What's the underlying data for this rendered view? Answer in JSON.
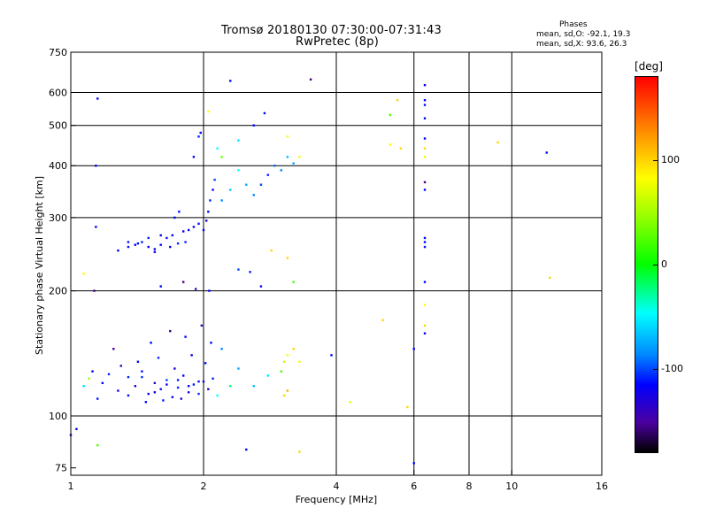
{
  "header": {
    "title": "Tromsø 20180130 07:30:00-07:31:43",
    "subtitle": "RwPretec (8p)",
    "stats_heading": "Phases",
    "stats_o": "mean, sd,O: -92.1, 19.3",
    "stats_x": "mean, sd,X:  93.6, 26.3"
  },
  "colorbar": {
    "unit": "[deg]",
    "ticks": [
      "100",
      "0",
      "-100"
    ],
    "tick_values": [
      100,
      0,
      -100
    ],
    "range": [
      -180,
      180
    ],
    "colors_top_to_bottom": [
      "#ff0000",
      "#ff8800",
      "#ffff00",
      "#00ff00",
      "#00ffff",
      "#0000ff",
      "#000000"
    ]
  },
  "chart_data": {
    "type": "scatter",
    "title": "Tromsø 20180130 07:30:00-07:31:43",
    "subtitle": "RwPretec (8p)",
    "xlabel": "Frequency [MHz]",
    "ylabel": "Stationary phase Virtual Height [km]",
    "x_scale": "log",
    "y_scale": "log",
    "xlim": [
      1,
      16
    ],
    "ylim": [
      72,
      750
    ],
    "x_ticks": [
      1,
      2,
      4,
      6,
      8,
      10,
      16
    ],
    "x_tick_labels": [
      "1",
      "2",
      "4",
      "6",
      "8",
      "10",
      "16"
    ],
    "y_ticks": [
      75,
      100,
      200,
      300,
      400,
      500,
      600,
      750
    ],
    "y_tick_labels": [
      "75",
      "100",
      "200",
      "300",
      "400",
      "500",
      "600",
      "750"
    ],
    "x_gridlines": [
      2,
      4,
      6,
      8,
      10
    ],
    "y_gridlines": [
      100,
      200,
      300,
      400,
      500,
      600
    ],
    "grid": true,
    "color_scale": "phase [deg], -180 (black) to 180 (red)",
    "series": [
      {
        "points": [
          [
            1.18,
            120,
            -100
          ],
          [
            1.22,
            126,
            -90
          ],
          [
            1.28,
            115,
            -105
          ],
          [
            1.35,
            112,
            -95
          ],
          [
            1.4,
            118,
            -110
          ],
          [
            1.45,
            124,
            -85
          ],
          [
            1.5,
            113,
            -100
          ],
          [
            1.55,
            120,
            -120
          ],
          [
            1.6,
            116,
            -95
          ],
          [
            1.65,
            122,
            -80
          ],
          [
            1.7,
            111,
            -105
          ],
          [
            1.75,
            117,
            -90
          ],
          [
            1.8,
            125,
            -100
          ],
          [
            1.85,
            114,
            -115
          ],
          [
            1.9,
            119,
            -95
          ],
          [
            1.95,
            113,
            -85
          ],
          [
            2.0,
            121,
            -100
          ],
          [
            2.05,
            116,
            -110
          ],
          [
            2.1,
            123,
            -90
          ],
          [
            1.12,
            128,
            -100
          ],
          [
            1.15,
            110,
            -95
          ],
          [
            1.3,
            132,
            -120
          ],
          [
            1.42,
            135,
            -100
          ],
          [
            1.58,
            138,
            -90
          ],
          [
            1.72,
            130,
            -105
          ],
          [
            1.88,
            140,
            -100
          ],
          [
            2.02,
            134,
            -95
          ],
          [
            1.48,
            108,
            -100
          ],
          [
            1.62,
            109,
            -90
          ],
          [
            1.78,
            110,
            -110
          ],
          [
            1.25,
            145,
            -130
          ],
          [
            1.52,
            150,
            -100
          ],
          [
            1.68,
            160,
            -140
          ],
          [
            1.82,
            155,
            -100
          ],
          [
            1.98,
            165,
            -120
          ],
          [
            2.08,
            150,
            -100
          ],
          [
            2.2,
            145,
            -60
          ],
          [
            2.4,
            130,
            -50
          ],
          [
            2.6,
            118,
            -40
          ],
          [
            2.8,
            125,
            -30
          ],
          [
            3.0,
            128,
            20
          ],
          [
            3.05,
            135,
            60
          ],
          [
            3.1,
            140,
            100
          ],
          [
            3.2,
            145,
            110
          ],
          [
            3.3,
            135,
            90
          ],
          [
            3.05,
            112,
            110
          ],
          [
            3.1,
            115,
            120
          ],
          [
            2.15,
            112,
            -20
          ],
          [
            2.3,
            118,
            -10
          ],
          [
            1.35,
            124,
            -90
          ],
          [
            1.45,
            128,
            -95
          ],
          [
            1.55,
            114,
            -100
          ],
          [
            1.65,
            119,
            -100
          ],
          [
            1.75,
            122,
            -90
          ],
          [
            1.85,
            118,
            -100
          ],
          [
            1.95,
            121,
            -110
          ],
          [
            1.07,
            118,
            -30
          ],
          [
            1.1,
            123,
            40
          ],
          [
            1.28,
            250,
            -100
          ],
          [
            1.35,
            255,
            -95
          ],
          [
            1.4,
            258,
            -100
          ],
          [
            1.45,
            262,
            -90
          ],
          [
            1.5,
            255,
            -100
          ],
          [
            1.55,
            252,
            -105
          ],
          [
            1.6,
            258,
            -100
          ],
          [
            1.65,
            268,
            -95
          ],
          [
            1.7,
            272,
            -100
          ],
          [
            1.75,
            260,
            -90
          ],
          [
            1.8,
            278,
            -100
          ],
          [
            1.85,
            280,
            -100
          ],
          [
            1.9,
            285,
            -100
          ],
          [
            1.95,
            290,
            -95
          ],
          [
            2.0,
            280,
            -100
          ],
          [
            2.03,
            295,
            -110
          ],
          [
            2.05,
            310,
            -100
          ],
          [
            2.07,
            330,
            -90
          ],
          [
            2.1,
            350,
            -100
          ],
          [
            2.12,
            370,
            -80
          ],
          [
            1.9,
            420,
            -100
          ],
          [
            1.95,
            470,
            -90
          ],
          [
            1.97,
            480,
            -100
          ],
          [
            1.72,
            300,
            -100
          ],
          [
            1.76,
            310,
            -95
          ],
          [
            1.6,
            272,
            -100
          ],
          [
            1.5,
            268,
            -90
          ],
          [
            1.42,
            260,
            -100
          ],
          [
            1.35,
            262,
            -95
          ],
          [
            1.55,
            248,
            -100
          ],
          [
            1.68,
            255,
            -100
          ],
          [
            1.82,
            262,
            -90
          ],
          [
            2.2,
            330,
            -60
          ],
          [
            2.3,
            350,
            -40
          ],
          [
            2.4,
            390,
            -20
          ],
          [
            2.5,
            360,
            -50
          ],
          [
            2.6,
            340,
            -60
          ],
          [
            2.7,
            360,
            -80
          ],
          [
            2.8,
            380,
            -90
          ],
          [
            2.9,
            400,
            -70
          ],
          [
            3.0,
            390,
            -60
          ],
          [
            3.1,
            420,
            -40
          ],
          [
            3.2,
            405,
            -50
          ],
          [
            3.3,
            420,
            90
          ],
          [
            2.2,
            420,
            30
          ],
          [
            2.15,
            440,
            -20
          ],
          [
            2.4,
            460,
            -30
          ],
          [
            2.6,
            500,
            -100
          ],
          [
            3.1,
            470,
            100
          ],
          [
            2.4,
            225,
            -80
          ],
          [
            2.55,
            222,
            -90
          ],
          [
            2.7,
            205,
            -100
          ],
          [
            2.85,
            250,
            110
          ],
          [
            3.1,
            240,
            110
          ],
          [
            3.2,
            210,
            20
          ],
          [
            1.8,
            210,
            -140
          ],
          [
            1.92,
            202,
            -120
          ],
          [
            2.06,
            200,
            -100
          ],
          [
            1.15,
            580,
            -100
          ],
          [
            2.3,
            640,
            -100
          ],
          [
            3.5,
            645,
            -140
          ],
          [
            2.05,
            540,
            100
          ],
          [
            2.75,
            535,
            -100
          ],
          [
            5.5,
            575,
            110
          ],
          [
            5.3,
            530,
            20
          ],
          [
            6.35,
            625,
            -100
          ],
          [
            6.35,
            575,
            -100
          ],
          [
            6.35,
            560,
            -100
          ],
          [
            6.35,
            520,
            -100
          ],
          [
            6.35,
            465,
            -100
          ],
          [
            6.35,
            440,
            110
          ],
          [
            6.35,
            420,
            90
          ],
          [
            6.35,
            365,
            -140
          ],
          [
            6.35,
            350,
            -100
          ],
          [
            6.35,
            268,
            -100
          ],
          [
            6.35,
            262,
            -100
          ],
          [
            6.35,
            255,
            -95
          ],
          [
            6.35,
            210,
            -100
          ],
          [
            6.35,
            185,
            100
          ],
          [
            6.35,
            165,
            110
          ],
          [
            6.35,
            158,
            -100
          ],
          [
            5.3,
            450,
            100
          ],
          [
            5.6,
            440,
            110
          ],
          [
            9.3,
            455,
            110
          ],
          [
            12.0,
            430,
            -100
          ],
          [
            6.0,
            145,
            -100
          ],
          [
            5.8,
            105,
            110
          ],
          [
            5.1,
            170,
            110
          ],
          [
            4.3,
            108,
            80
          ],
          [
            3.9,
            140,
            -100
          ],
          [
            6.0,
            77,
            -100
          ],
          [
            3.3,
            82,
            110
          ],
          [
            2.5,
            83,
            -100
          ],
          [
            1.15,
            85,
            20
          ],
          [
            1.03,
            93,
            -100
          ],
          [
            1.0,
            90,
            -100
          ],
          [
            1.07,
            220,
            100
          ],
          [
            1.14,
            285,
            -100
          ],
          [
            1.14,
            400,
            -100
          ],
          [
            12.2,
            215,
            110
          ],
          [
            1.13,
            200,
            -140
          ],
          [
            1.6,
            205,
            -100
          ]
        ]
      }
    ]
  }
}
